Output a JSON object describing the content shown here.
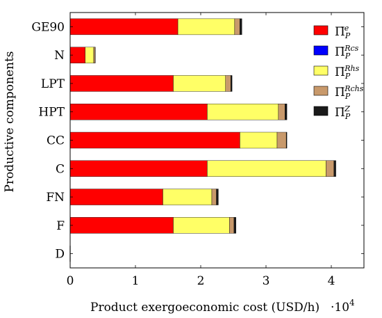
{
  "chart_data": {
    "type": "bar",
    "orientation": "horizontal",
    "stacked": true,
    "categories": [
      "D",
      "F",
      "FN",
      "C",
      "CC",
      "HPT",
      "LPT",
      "N",
      "GE90"
    ],
    "series": [
      {
        "name": "Π̇_P^e",
        "label_base": "Π̇",
        "label_sub": "P",
        "label_sup": "e",
        "color": "#ff0000",
        "values": [
          0.0,
          15800,
          14200,
          21000,
          26000,
          21000,
          15800,
          2300,
          16500
        ]
      },
      {
        "name": "Π̇_P^Rcs",
        "label_base": "Π̇",
        "label_sub": "P",
        "label_sup": "Rcs",
        "color": "#0000ff",
        "values": [
          0,
          0,
          0,
          0,
          0,
          0,
          0,
          0,
          0
        ]
      },
      {
        "name": "Π̇_P^Rhs",
        "label_base": "Π̇",
        "label_sub": "P",
        "label_sup": "Rhs",
        "color": "#ffff66",
        "values": [
          0,
          8600,
          7500,
          18200,
          5700,
          10900,
          8000,
          1300,
          8700
        ]
      },
      {
        "name": "Π̇_P^Rchs",
        "label_base": "Π̇",
        "label_sub": "P",
        "label_sup": "Rchs",
        "color": "#c8996b",
        "values": [
          0,
          700,
          700,
          1200,
          1400,
          1000,
          800,
          200,
          800
        ]
      },
      {
        "name": "Π̇_P^Z",
        "label_base": "Π̇",
        "label_sub": "P",
        "label_sup": "Z",
        "color": "#1a1a1a",
        "values": [
          0,
          300,
          300,
          300,
          100,
          300,
          200,
          50,
          300
        ]
      }
    ],
    "xlim": [
      0,
      45000
    ],
    "xticks": [
      0,
      1,
      2,
      3,
      4
    ],
    "x_multiplier": "·10",
    "x_multiplier_exp": "4",
    "xlabel": "Product exergoeconomic cost (USD/h)",
    "ylabel": "Productive components",
    "legend_position": "right",
    "grid": false
  }
}
